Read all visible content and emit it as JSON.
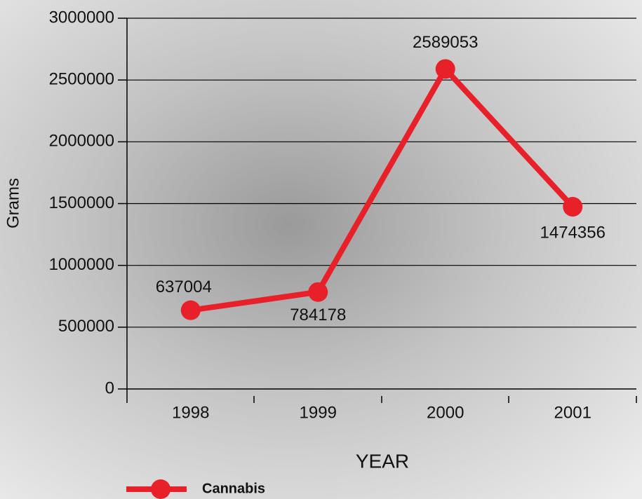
{
  "chart_data": {
    "type": "line",
    "x_label": "YEAR",
    "y_label": "Grams",
    "categories": [
      "1998",
      "1999",
      "2000",
      "2001"
    ],
    "series": [
      {
        "name": "Cannabis",
        "color": "#e8202a",
        "values": [
          637004,
          784178,
          2589053,
          1474356
        ]
      }
    ],
    "ylim": [
      0,
      3000000
    ],
    "yticks": [
      0,
      500000,
      1000000,
      1500000,
      2000000,
      2500000,
      3000000
    ],
    "grid": true,
    "legend": "bottom-left"
  }
}
